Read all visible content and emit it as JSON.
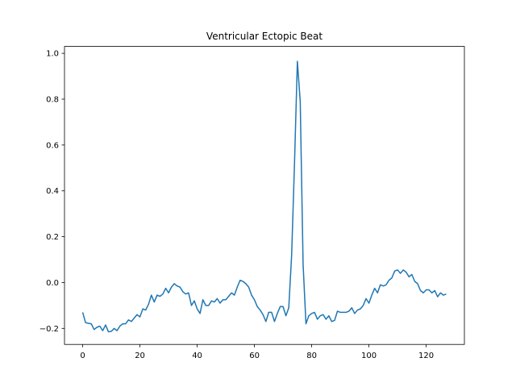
{
  "chart_data": {
    "type": "line",
    "title": "Ventricular Ectopic Beat",
    "xlabel": "",
    "ylabel": "",
    "xlim": [
      -6.35,
      133.35
    ],
    "ylim": [
      -0.27,
      1.03
    ],
    "x_ticks": [
      0,
      20,
      40,
      60,
      80,
      100,
      120
    ],
    "y_ticks": [
      -0.2,
      0.0,
      0.2,
      0.4,
      0.6,
      0.8,
      1.0
    ],
    "y_tick_labels": [
      "−0.2",
      "0.0",
      "0.2",
      "0.4",
      "0.6",
      "0.8",
      "1.0"
    ],
    "grid": false,
    "line_color": "#1f77b4",
    "series": [
      {
        "values": [
          -0.13,
          -0.175,
          -0.178,
          -0.18,
          -0.205,
          -0.195,
          -0.19,
          -0.21,
          -0.185,
          -0.215,
          -0.213,
          -0.2,
          -0.21,
          -0.19,
          -0.18,
          -0.18,
          -0.163,
          -0.17,
          -0.155,
          -0.14,
          -0.15,
          -0.115,
          -0.12,
          -0.095,
          -0.055,
          -0.085,
          -0.055,
          -0.06,
          -0.05,
          -0.025,
          -0.045,
          -0.02,
          -0.005,
          -0.015,
          -0.02,
          -0.04,
          -0.05,
          -0.045,
          -0.1,
          -0.08,
          -0.115,
          -0.135,
          -0.075,
          -0.1,
          -0.1,
          -0.08,
          -0.085,
          -0.07,
          -0.09,
          -0.075,
          -0.075,
          -0.06,
          -0.045,
          -0.055,
          -0.02,
          0.01,
          0.005,
          -0.005,
          -0.02,
          -0.055,
          -0.075,
          -0.105,
          -0.12,
          -0.14,
          -0.17,
          -0.13,
          -0.13,
          -0.17,
          -0.135,
          -0.105,
          -0.105,
          -0.145,
          -0.11,
          0.12,
          0.52,
          0.965,
          0.79,
          0.08,
          -0.18,
          -0.145,
          -0.135,
          -0.13,
          -0.16,
          -0.145,
          -0.14,
          -0.16,
          -0.145,
          -0.17,
          -0.165,
          -0.125,
          -0.13,
          -0.13,
          -0.13,
          -0.125,
          -0.11,
          -0.135,
          -0.12,
          -0.115,
          -0.1,
          -0.07,
          -0.09,
          -0.055,
          -0.025,
          -0.045,
          -0.01,
          -0.015,
          -0.01,
          0.01,
          0.02,
          0.05,
          0.055,
          0.04,
          0.055,
          0.045,
          0.025,
          0.035,
          0.005,
          -0.005,
          -0.035,
          -0.045,
          -0.032,
          -0.032,
          -0.045,
          -0.035,
          -0.062,
          -0.045,
          -0.055,
          -0.05
        ]
      }
    ]
  }
}
